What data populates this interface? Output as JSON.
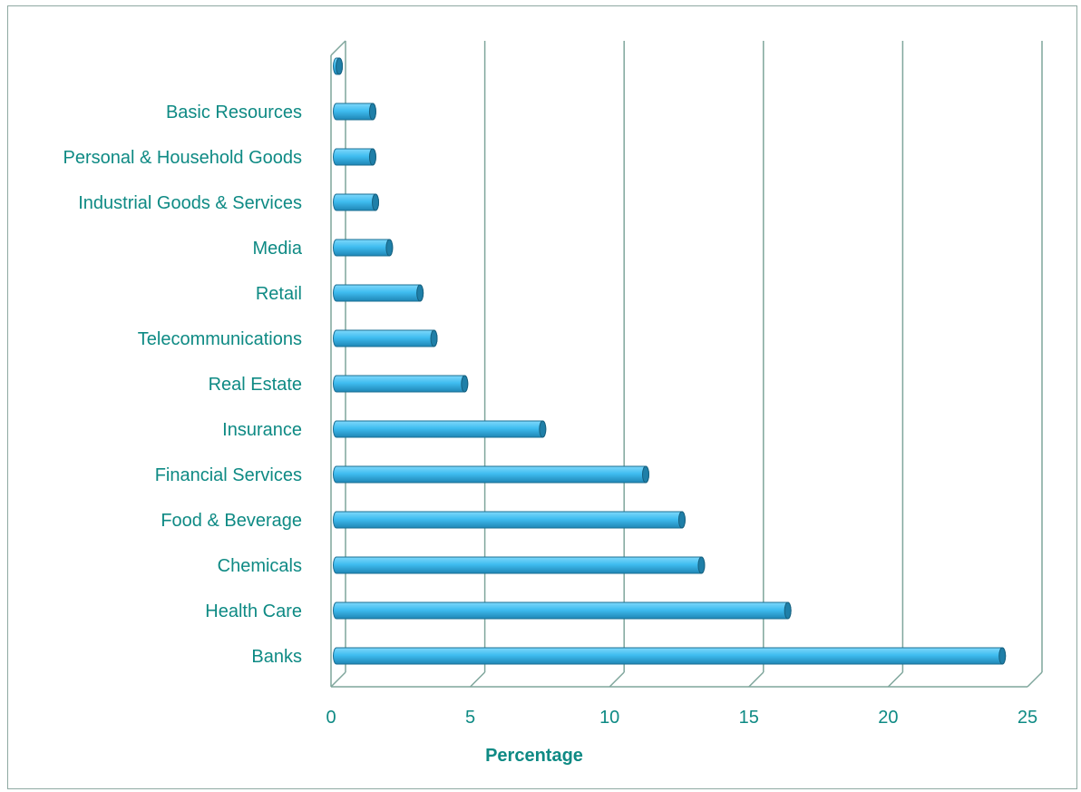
{
  "chart_data": {
    "type": "bar",
    "orientation": "horizontal",
    "style": "3d-cylinder",
    "categories": [
      "",
      "Basic Resources",
      "Personal & Household Goods",
      "Industrial Goods & Services",
      "Media",
      "Retail",
      "Telecommunications",
      "Real Estate",
      "Insurance",
      "Financial Services",
      "Food & Beverage",
      "Chemicals",
      "Health Care",
      "Banks"
    ],
    "values": [
      0.1,
      1.3,
      1.3,
      1.4,
      1.9,
      3.0,
      3.5,
      4.6,
      7.4,
      11.1,
      12.4,
      13.1,
      16.2,
      23.9
    ],
    "xlabel": "Percentage",
    "ylabel": "",
    "xlim": [
      0,
      25
    ],
    "xticks": [
      "0",
      "5",
      "10",
      "15",
      "20",
      "25"
    ],
    "grid": true,
    "colors": {
      "bar": "#3fbdf0",
      "bar_dark": "#1f7fa8",
      "text": "#0e8a84",
      "grid": "#7fa69c"
    }
  }
}
